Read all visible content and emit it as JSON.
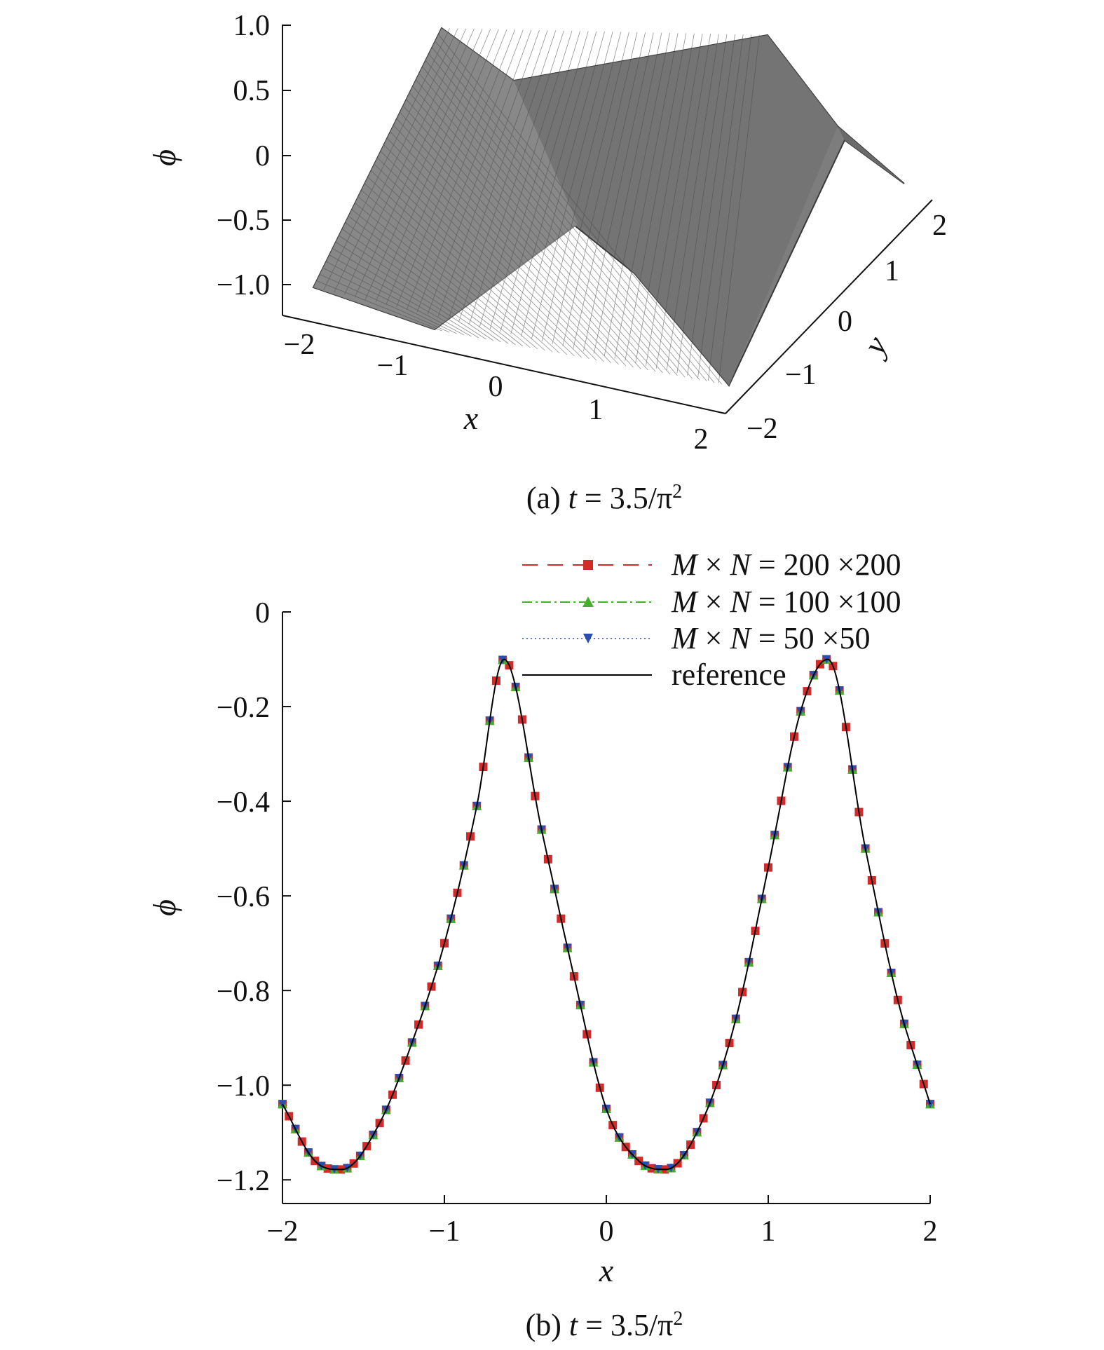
{
  "chart_data": [
    {
      "type": "surface",
      "caption": {
        "prefix": "(a) ",
        "var": "t",
        "rest": " = 3.5/π",
        "sup": "2"
      },
      "zlabel": "ϕ",
      "xlabel": "x",
      "ylabel": "y",
      "zticks": [
        "1.0",
        "0.5",
        "0",
        "−0.5",
        "−1.0"
      ],
      "xticks": [
        "−2",
        "−1",
        "0",
        "1",
        "2"
      ],
      "yticks": [
        "−2",
        "−1",
        "0",
        "1",
        "2"
      ],
      "zlim": [
        -1.0,
        1.0
      ],
      "xlim": [
        -2,
        2
      ],
      "ylim": [
        -2,
        2
      ],
      "surface_color": "#808080"
    },
    {
      "type": "line",
      "caption": {
        "prefix": "(b) ",
        "var": "t",
        "rest": " = 3.5/π",
        "sup": "2"
      },
      "xlabel": "x",
      "ylabel": "ϕ",
      "xlim": [
        -2,
        2
      ],
      "ylim": [
        -1.25,
        0
      ],
      "xticks": [
        "−2",
        "−1",
        "0",
        "1",
        "2"
      ],
      "yticks": [
        "0",
        "−0.2",
        "−0.4",
        "−0.6",
        "−0.8",
        "−1.0",
        "−1.2"
      ],
      "legend_position": "top-right",
      "series": [
        {
          "name": "M × N = 200 ×200",
          "color": "#d42a2a",
          "marker": "square",
          "linestyle": "dashed"
        },
        {
          "name": "M × N = 100 ×100",
          "color": "#43b02a",
          "marker": "triangle-up",
          "linestyle": "dash-dot"
        },
        {
          "name": "M × N = 50 ×50",
          "color": "#2a4fb0",
          "marker": "triangle-down",
          "linestyle": "dotted"
        },
        {
          "name": "reference",
          "color": "#000000",
          "marker": "none",
          "linestyle": "solid"
        }
      ],
      "x": [
        -2.0,
        -1.8,
        -1.632,
        -1.4,
        -1.2,
        -1.0,
        -0.8,
        -0.632,
        -0.4,
        -0.2,
        0.0,
        0.2,
        0.368,
        0.6,
        0.8,
        1.0,
        1.2,
        1.368,
        1.6,
        1.8,
        2.0
      ],
      "y": [
        -1.04,
        -1.16,
        -1.178,
        -1.08,
        -0.91,
        -0.7,
        -0.41,
        -0.1,
        -0.46,
        -0.77,
        -1.05,
        -1.16,
        -1.178,
        -1.07,
        -0.86,
        -0.54,
        -0.21,
        -0.1,
        -0.5,
        -0.82,
        -1.04
      ]
    }
  ]
}
